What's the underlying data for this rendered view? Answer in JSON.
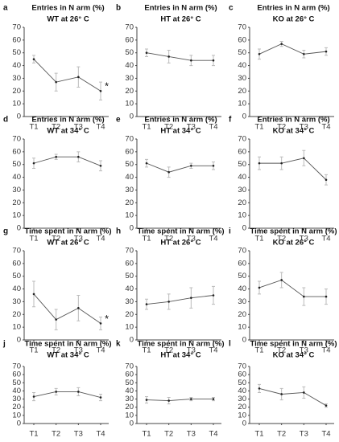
{
  "chart_data": [
    {
      "type": "line",
      "label": "a",
      "title": "Entries in N arm (%)",
      "subtitle": "WT at 26° C",
      "categories": [
        "T1",
        "T2",
        "T3",
        "T4"
      ],
      "series": [
        {
          "color": "#555555",
          "values": [
            45,
            27,
            31,
            20
          ],
          "errors": [
            3,
            7,
            8,
            7
          ]
        }
      ],
      "ylim": [
        0,
        70
      ],
      "yticks": [
        0,
        10,
        20,
        30,
        40,
        50,
        60,
        70
      ],
      "annotation": {
        "text": "*",
        "category": "T4"
      }
    },
    {
      "type": "line",
      "label": "b",
      "title": "Entries in N arm (%)",
      "subtitle": "HT at 26° C",
      "categories": [
        "T1",
        "T2",
        "T3",
        "T4"
      ],
      "series": [
        {
          "color": "#555555",
          "values": [
            50,
            47,
            44,
            44
          ],
          "errors": [
            3,
            5,
            4,
            4
          ]
        }
      ],
      "ylim": [
        0,
        70
      ],
      "yticks": [
        0,
        10,
        20,
        30,
        40,
        50,
        60,
        70
      ]
    },
    {
      "type": "line",
      "label": "c",
      "title": "Entries in N arm (%)",
      "subtitle": "KO at 26° C",
      "categories": [
        "T1",
        "T2",
        "T3",
        "T4"
      ],
      "series": [
        {
          "color": "#555555",
          "values": [
            49,
            57,
            49,
            51
          ],
          "errors": [
            4,
            2,
            3,
            3
          ]
        }
      ],
      "ylim": [
        0,
        70
      ],
      "yticks": [
        0,
        10,
        20,
        30,
        40,
        50,
        60,
        70
      ]
    },
    {
      "type": "line",
      "label": "d",
      "title": "Entries in N arm (%)",
      "subtitle": "WT at 34° C",
      "categories": [
        "T1",
        "T2",
        "T3",
        "T4"
      ],
      "series": [
        {
          "color": "#555555",
          "values": [
            51,
            56,
            56,
            49
          ],
          "errors": [
            4,
            2,
            4,
            4
          ]
        }
      ],
      "ylim": [
        0,
        70
      ],
      "yticks": [
        0,
        10,
        20,
        30,
        40,
        50,
        60,
        70
      ]
    },
    {
      "type": "line",
      "label": "e",
      "title": "Entries in N arm (%)",
      "subtitle": "HT at 34° C",
      "categories": [
        "T1",
        "T2",
        "T3",
        "T4"
      ],
      "series": [
        {
          "color": "#555555",
          "values": [
            51,
            44,
            49,
            49
          ],
          "errors": [
            3,
            4,
            2,
            3
          ]
        }
      ],
      "ylim": [
        0,
        70
      ],
      "yticks": [
        0,
        10,
        20,
        30,
        40,
        50,
        60,
        70
      ]
    },
    {
      "type": "line",
      "label": "f",
      "title": "Entries in N arm (%)",
      "subtitle": "KO at 34° C",
      "categories": [
        "T1",
        "T2",
        "T3",
        "T4"
      ],
      "series": [
        {
          "color": "#555555",
          "values": [
            51,
            51,
            55,
            38
          ],
          "errors": [
            5,
            5,
            6,
            4
          ]
        }
      ],
      "ylim": [
        0,
        70
      ],
      "yticks": [
        0,
        10,
        20,
        30,
        40,
        50,
        60,
        70
      ]
    },
    {
      "type": "line",
      "label": "g",
      "title": "Time spent in N arm (%)",
      "subtitle": "WT at 26° C",
      "categories": [
        "T1",
        "T2",
        "T3",
        "T4"
      ],
      "series": [
        {
          "color": "#555555",
          "values": [
            36,
            16,
            25,
            13
          ],
          "errors": [
            10,
            8,
            10,
            5
          ]
        }
      ],
      "ylim": [
        0,
        70
      ],
      "yticks": [
        0,
        10,
        20,
        30,
        40,
        50,
        60,
        70
      ],
      "annotation": {
        "text": "*",
        "category": "T4"
      }
    },
    {
      "type": "line",
      "label": "h",
      "title": "Time spent in N arm (%)",
      "subtitle": "HT at 26° C",
      "categories": [
        "T1",
        "T2",
        "T3",
        "T4"
      ],
      "series": [
        {
          "color": "#555555",
          "values": [
            28,
            30,
            33,
            35
          ],
          "errors": [
            4,
            6,
            8,
            7
          ]
        }
      ],
      "ylim": [
        0,
        70
      ],
      "yticks": [
        0,
        10,
        20,
        30,
        40,
        50,
        60,
        70
      ]
    },
    {
      "type": "line",
      "label": "i",
      "title": "Time spent in N arm (%)",
      "subtitle": "KO at 26° C",
      "categories": [
        "T1",
        "T2",
        "T3",
        "T4"
      ],
      "series": [
        {
          "color": "#555555",
          "values": [
            41,
            47,
            34,
            34
          ],
          "errors": [
            5,
            6,
            7,
            6
          ]
        }
      ],
      "ylim": [
        0,
        70
      ],
      "yticks": [
        0,
        10,
        20,
        30,
        40,
        50,
        60,
        70
      ]
    },
    {
      "type": "line",
      "label": "j",
      "title": "Time spent in N arm (%)",
      "subtitle": "WT at 34° C",
      "categories": [
        "T1",
        "T2",
        "T3",
        "T4"
      ],
      "series": [
        {
          "color": "#555555",
          "values": [
            33,
            39,
            39,
            32
          ],
          "errors": [
            5,
            4,
            5,
            4
          ]
        }
      ],
      "ylim": [
        0,
        70
      ],
      "yticks": [
        0,
        10,
        20,
        30,
        40,
        50,
        60,
        70
      ]
    },
    {
      "type": "line",
      "label": "k",
      "title": "Time spent in N arm (%)",
      "subtitle": "HT at 34° C",
      "categories": [
        "T1",
        "T2",
        "T3",
        "T4"
      ],
      "series": [
        {
          "color": "#555555",
          "values": [
            29,
            28,
            30,
            30
          ],
          "errors": [
            4,
            4,
            2,
            2
          ]
        }
      ],
      "ylim": [
        0,
        70
      ],
      "yticks": [
        0,
        10,
        20,
        30,
        40,
        50,
        60,
        70
      ]
    },
    {
      "type": "line",
      "label": "l",
      "title": "Time spent in N arm (%)",
      "subtitle": "KO at 34° C",
      "categories": [
        "T1",
        "T2",
        "T3",
        "T4"
      ],
      "series": [
        {
          "color": "#555555",
          "values": [
            43,
            36,
            38,
            22
          ],
          "errors": [
            5,
            7,
            7,
            2
          ]
        }
      ],
      "ylim": [
        0,
        70
      ],
      "yticks": [
        0,
        10,
        20,
        30,
        40,
        50,
        60,
        70
      ]
    }
  ]
}
